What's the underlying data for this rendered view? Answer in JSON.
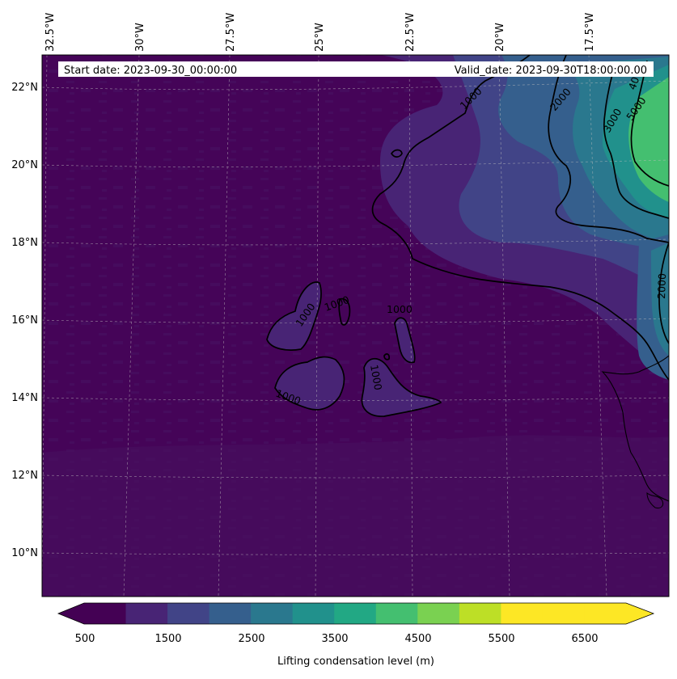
{
  "header": {
    "start_date": "Start date: 2023-09-30_00:00:00",
    "valid_date": "Valid_date: 2023-09-30T18:00:00.00"
  },
  "longitude_labels": [
    "32.5°W",
    "30°W",
    "27.5°W",
    "25°W",
    "22.5°W",
    "20°W",
    "17.5°W"
  ],
  "latitude_labels": [
    "22°N",
    "20°N",
    "18°N",
    "16°N",
    "14°N",
    "12°N",
    "10°N"
  ],
  "contour_labels": {
    "c1000_a": "1000",
    "c1000_b": "1000",
    "c1000_c": "1000",
    "c1000_d": "1000",
    "c1000_e": "1000",
    "c1000_f": "1000",
    "c2000_a": "2000",
    "c2000_b": "2000",
    "c3000": "3000",
    "c5000": "5000",
    "c40": "40"
  },
  "colorbar": {
    "label": "Lifting condensation level (m)",
    "tick_labels": [
      "500",
      "1500",
      "2500",
      "3500",
      "4500",
      "5500",
      "6500"
    ],
    "levels": [
      500,
      1000,
      1500,
      2000,
      2500,
      3000,
      3500,
      4000,
      4500,
      5000,
      5500,
      6000,
      6500,
      7000
    ],
    "colors": [
      "#440154",
      "#482475",
      "#414487",
      "#355f8d",
      "#2a788e",
      "#21918c",
      "#22a884",
      "#44bf70",
      "#7ad151",
      "#bddf26",
      "#fde725",
      "#fde725",
      "#fde725"
    ],
    "extend": "both"
  },
  "colors": {
    "background_low": "#440154",
    "band_1000": "#482475",
    "band_1500": "#414487",
    "band_2000": "#355f8d",
    "band_2500": "#2a788e",
    "band_3000": "#21918c",
    "band_4500": "#44bf70"
  }
}
